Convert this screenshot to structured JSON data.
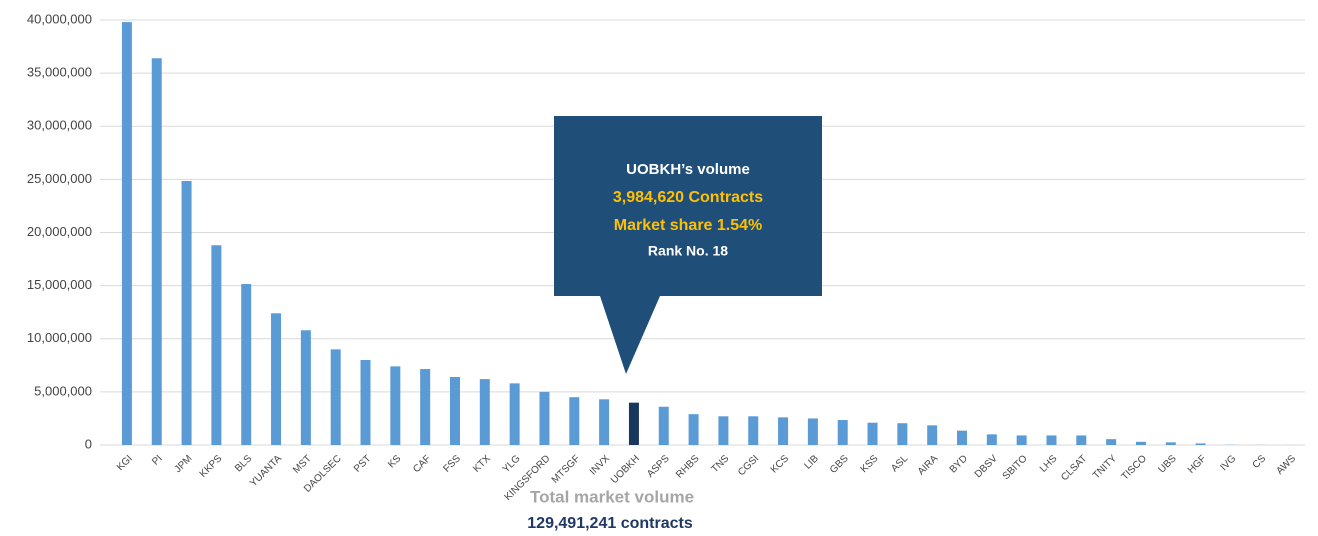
{
  "chart_data": {
    "type": "bar",
    "categories": [
      "KGI",
      "PI",
      "JPM",
      "KKPS",
      "BLS",
      "YUANTA",
      "MST",
      "DAOLSEC",
      "PST",
      "KS",
      "CAF",
      "FSS",
      "KTX",
      "YLG",
      "KINGSFORD",
      "MTSGF",
      "INVX",
      "UOBKH",
      "ASPS",
      "RHBS",
      "TNS",
      "CGSI",
      "KCS",
      "LIB",
      "GBS",
      "KSS",
      "ASL",
      "AIRA",
      "BYD",
      "DBSV",
      "SBITO",
      "LHS",
      "CLSAT",
      "TNITY",
      "TISCO",
      "UBS",
      "HGF",
      "IVG",
      "CS",
      "AWS"
    ],
    "values": [
      39800000,
      36400000,
      24850000,
      18800000,
      15150000,
      12400000,
      10800000,
      9000000,
      8000000,
      7400000,
      7150000,
      6400000,
      6200000,
      5800000,
      5000000,
      4500000,
      4300000,
      3984620,
      3600000,
      2900000,
      2700000,
      2700000,
      2600000,
      2500000,
      2350000,
      2100000,
      2050000,
      1850000,
      1350000,
      1000000,
      900000,
      900000,
      900000,
      550000,
      300000,
      250000,
      150000,
      20000,
      10000,
      5000
    ],
    "color": "#5b9bd5",
    "highlight": {
      "category": "UOBKH",
      "color": "#17375e"
    },
    "ylim": [
      0,
      40000000
    ],
    "yticks": [
      0,
      {
        "value": 5000000,
        "label": "5,000,000"
      },
      {
        "value": 10000000,
        "label": "10,000,000"
      },
      {
        "value": 15000000,
        "label": "15,000,000"
      },
      {
        "value": 20000000,
        "label": "20,000,000"
      },
      {
        "value": 25000000,
        "label": "25,000,000"
      },
      {
        "value": 30000000,
        "label": "30,000,000"
      },
      {
        "value": 35000000,
        "label": "35,000,000"
      },
      {
        "value": 40000000,
        "label": "40,000,000"
      }
    ],
    "grid": true,
    "annotations": {
      "callout": [
        "UOBKH’s volume",
        "3,984,620 Contracts",
        "Market share 1.54%",
        "Rank No. 18"
      ],
      "footer": [
        "Total market volume",
        "129,491,241 contracts"
      ]
    }
  }
}
